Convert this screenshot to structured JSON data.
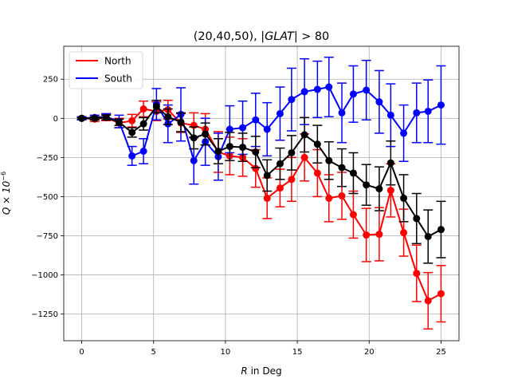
{
  "chart_data": {
    "type": "line",
    "title_prefix": "(20,40,50), ",
    "title_math": "|GLAT|",
    "title_suffix": " > 80",
    "xlabel_math": "R",
    "xlabel_text": " in Deg",
    "ylabel_math": "Q × 10",
    "ylabel_exp": "−6",
    "xlim": [
      -1.25,
      26.25
    ],
    "ylim": [
      -1420,
      460
    ],
    "xticks": [
      0,
      5,
      10,
      15,
      20,
      25
    ],
    "xtick_labels": [
      "0",
      "5",
      "10",
      "15",
      "20",
      "25"
    ],
    "yticks": [
      -1250,
      -1000,
      -750,
      -500,
      -250,
      0,
      250
    ],
    "ytick_labels": [
      "−1250",
      "−1000",
      "−750",
      "−500",
      "−250",
      "0",
      "250"
    ],
    "grid": true,
    "legend_position": "top-left",
    "x": [
      0,
      0.9,
      1.7,
      2.6,
      3.5,
      4.3,
      5.2,
      6.0,
      6.9,
      7.8,
      8.6,
      9.5,
      10.3,
      11.2,
      12.1,
      12.9,
      13.8,
      14.6,
      15.5,
      16.4,
      17.2,
      18.1,
      18.9,
      19.8,
      20.7,
      21.5,
      22.4,
      23.3,
      24.1,
      25.0
    ],
    "series": [
      {
        "name": "North",
        "color": "#ff0000",
        "marker_color": "#ff0000",
        "in_legend": true,
        "values": [
          0,
          -5,
          5,
          -30,
          -15,
          60,
          45,
          55,
          -30,
          -45,
          -70,
          -215,
          -240,
          -250,
          -320,
          -510,
          -445,
          -390,
          -250,
          -350,
          -510,
          -495,
          -615,
          -745,
          -740,
          -460,
          -730,
          -990,
          -1165,
          -1120
        ],
        "errors": [
          10,
          15,
          20,
          30,
          40,
          50,
          60,
          60,
          60,
          80,
          100,
          130,
          120,
          120,
          120,
          130,
          120,
          140,
          150,
          150,
          150,
          150,
          150,
          170,
          170,
          170,
          150,
          180,
          180,
          180
        ]
      },
      {
        "name": "South",
        "color": "#0000ff",
        "marker_color": "#0000ff",
        "in_legend": true,
        "values": [
          0,
          5,
          10,
          -20,
          -240,
          -210,
          90,
          -35,
          25,
          -270,
          -150,
          -245,
          -70,
          -60,
          -10,
          -70,
          30,
          120,
          170,
          185,
          200,
          35,
          155,
          180,
          105,
          20,
          -95,
          35,
          45,
          85
        ],
        "errors": [
          10,
          15,
          20,
          40,
          60,
          80,
          100,
          120,
          170,
          150,
          150,
          150,
          150,
          170,
          170,
          170,
          170,
          200,
          210,
          180,
          190,
          190,
          180,
          190,
          200,
          200,
          180,
          190,
          200,
          250
        ]
      },
      {
        "name": "",
        "color": "#000000",
        "marker_color": "#000000",
        "in_legend": false,
        "values": [
          0,
          0,
          5,
          -25,
          -90,
          -35,
          75,
          10,
          -25,
          -125,
          -100,
          -210,
          -180,
          -185,
          -215,
          -365,
          -290,
          -220,
          -105,
          -165,
          -270,
          -315,
          -350,
          -425,
          -450,
          -285,
          -510,
          -640,
          -755,
          -710
        ],
        "errors": [
          5,
          10,
          15,
          20,
          30,
          40,
          40,
          50,
          60,
          70,
          70,
          80,
          90,
          90,
          100,
          100,
          100,
          110,
          110,
          120,
          120,
          120,
          130,
          130,
          140,
          140,
          150,
          160,
          170,
          180
        ]
      }
    ]
  }
}
